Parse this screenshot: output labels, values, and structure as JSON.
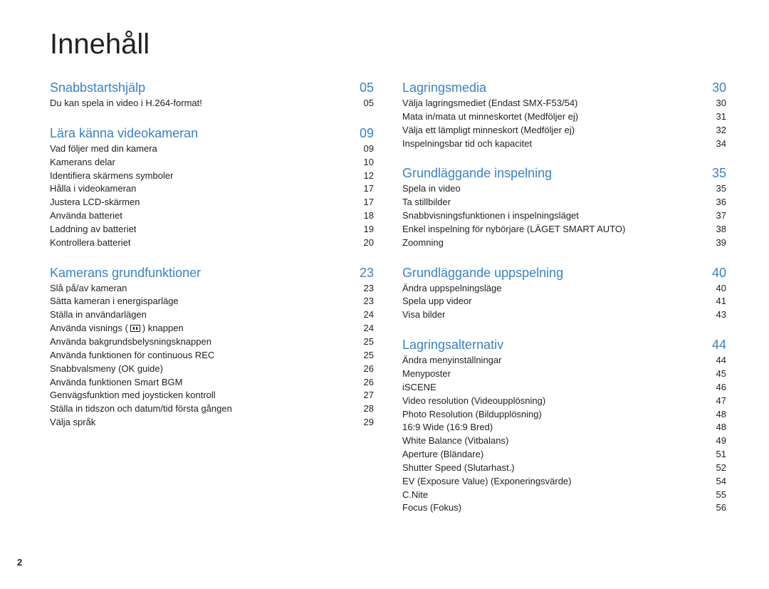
{
  "title": "Innehåll",
  "page_number": "2",
  "colors": {
    "heading": "#3a82c4",
    "text": "#222222",
    "background": "#ffffff"
  },
  "typography": {
    "title_fontsize_pt": 30,
    "heading_fontsize_pt": 14,
    "entry_fontsize_pt": 10
  },
  "columns": [
    {
      "sections": [
        {
          "title": "Snabbstartshjälp",
          "page": "05",
          "entries": [
            {
              "label": "Du kan spela in video i H.264-format!",
              "page": "05"
            }
          ]
        },
        {
          "title": "Lära känna videokameran",
          "page": "09",
          "entries": [
            {
              "label": "Vad följer med din kamera",
              "page": "09"
            },
            {
              "label": "Kamerans delar",
              "page": "10"
            },
            {
              "label": "Identifiera skärmens symboler",
              "page": "12"
            },
            {
              "label": "Hålla i videokameran",
              "page": "17"
            },
            {
              "label": "Justera LCD-skärmen",
              "page": "17"
            },
            {
              "label": "Använda batteriet",
              "page": "18"
            },
            {
              "label": "Laddning av batteriet",
              "page": "19"
            },
            {
              "label": "Kontrollera batteriet",
              "page": "20"
            }
          ]
        },
        {
          "title": "Kamerans grundfunktioner",
          "page": "23",
          "entries": [
            {
              "label": "Slå på/av kameran",
              "page": "23"
            },
            {
              "label": "Sätta kameran i energisparläge",
              "page": "23"
            },
            {
              "label": "Ställa in användarlägen",
              "page": "24"
            },
            {
              "label_pre": "Använda visnings (",
              "icon": "display-icon",
              "label_post": ") knappen",
              "page": "24"
            },
            {
              "label": "Använda bakgrundsbelysningsknappen",
              "page": "25"
            },
            {
              "label": "Använda funktionen för continuous REC",
              "page": "25"
            },
            {
              "label": "Snabbvalsmeny (OK guide)",
              "page": "26"
            },
            {
              "label": "Använda funktionen Smart BGM",
              "page": "26"
            },
            {
              "label": "Genvägsfunktion med joysticken kontroll",
              "page": "27"
            },
            {
              "label": "Ställa in tidszon och datum/tid första gången",
              "page": "28"
            },
            {
              "label": "Välja språk",
              "page": "29"
            }
          ]
        }
      ]
    },
    {
      "sections": [
        {
          "title": "Lagringsmedia",
          "page": "30",
          "entries": [
            {
              "label": "Välja lagringsmediet (Endast SMX-F53/54)",
              "page": "30"
            },
            {
              "label": "Mata in/mata ut minneskortet (Medföljer ej)",
              "page": "31"
            },
            {
              "label": "Välja ett lämpligt minneskort (Medföljer ej)",
              "page": "32"
            },
            {
              "label": "Inspelningsbar tid och kapacitet",
              "page": "34"
            }
          ]
        },
        {
          "title": "Grundläggande inspelning",
          "page": "35",
          "entries": [
            {
              "label": "Spela in video",
              "page": "35"
            },
            {
              "label": "Ta stillbilder",
              "page": "36"
            },
            {
              "label": "Snabbvisningsfunktionen i inspelningsläget",
              "page": "37"
            },
            {
              "label": "Enkel inspelning för nybörjare (LÄGET SMART AUTO)",
              "page": "38"
            },
            {
              "label": "Zoomning",
              "page": "39"
            }
          ]
        },
        {
          "title": "Grundläggande uppspelning",
          "page": "40",
          "entries": [
            {
              "label": "Ändra uppspelningsläge",
              "page": "40"
            },
            {
              "label": "Spela upp videor",
              "page": "41"
            },
            {
              "label": "Visa bilder",
              "page": "43"
            }
          ]
        },
        {
          "title": "Lagringsalternativ",
          "page": "44",
          "entries": [
            {
              "label": "Ändra menyinställningar",
              "page": "44"
            },
            {
              "label": "Menyposter",
              "page": "45"
            },
            {
              "label": "iSCENE",
              "page": "46"
            },
            {
              "label": "Video resolution (Videoupplösning)",
              "page": "47"
            },
            {
              "label": "Photo Resolution (Bildupplösning)",
              "page": "48"
            },
            {
              "label": "16:9 Wide (16:9 Bred)",
              "page": "48"
            },
            {
              "label": "White Balance (Vitbalans)",
              "page": "49"
            },
            {
              "label": "Aperture (Bländare)",
              "page": "51"
            },
            {
              "label": "Shutter Speed (Slutarhast.)",
              "page": "52"
            },
            {
              "label": "EV (Exposure Value) (Exponeringsvärde)",
              "page": "54"
            },
            {
              "label": "C.Nite",
              "page": "55"
            },
            {
              "label": "Focus (Fokus)",
              "page": "56"
            }
          ]
        }
      ]
    }
  ]
}
